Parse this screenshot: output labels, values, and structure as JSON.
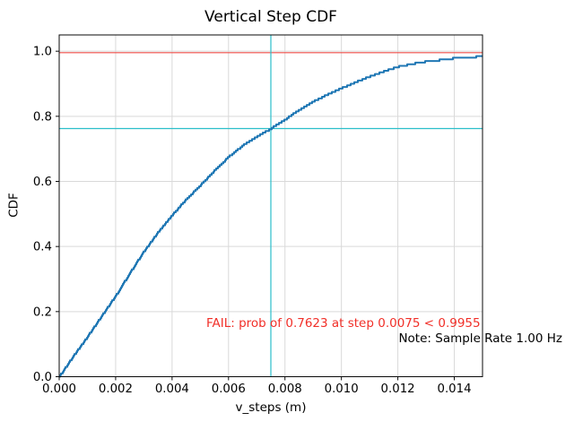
{
  "chart_data": {
    "type": "line",
    "title": "Vertical Step CDF",
    "xlabel": "v_steps (m)",
    "ylabel": "CDF",
    "xlim": [
      0,
      0.015
    ],
    "ylim": [
      0,
      1.05
    ],
    "grid": true,
    "legend": "none",
    "x_ticks": [
      {
        "value": 0.0,
        "label": "0.000"
      },
      {
        "value": 0.002,
        "label": "0.002"
      },
      {
        "value": 0.004,
        "label": "0.004"
      },
      {
        "value": 0.006,
        "label": "0.006"
      },
      {
        "value": 0.008,
        "label": "0.008"
      },
      {
        "value": 0.01,
        "label": "0.010"
      },
      {
        "value": 0.012,
        "label": "0.012"
      },
      {
        "value": 0.014,
        "label": "0.014"
      }
    ],
    "y_ticks": [
      {
        "value": 0.0,
        "label": "0.0"
      },
      {
        "value": 0.2,
        "label": "0.2"
      },
      {
        "value": 0.4,
        "label": "0.4"
      },
      {
        "value": 0.6,
        "label": "0.6"
      },
      {
        "value": 0.8,
        "label": "0.8"
      },
      {
        "value": 1.0,
        "label": "1.0"
      }
    ],
    "series": [
      {
        "name": "vertical-step-cdf",
        "style": "empirical-step",
        "color": "#1f77b4",
        "line_width": 2,
        "points": [
          [
            0.0,
            0.0
          ],
          [
            0.0005,
            0.063
          ],
          [
            0.001,
            0.123
          ],
          [
            0.0015,
            0.186
          ],
          [
            0.002,
            0.248
          ],
          [
            0.0025,
            0.318
          ],
          [
            0.003,
            0.385
          ],
          [
            0.0035,
            0.443
          ],
          [
            0.004,
            0.496
          ],
          [
            0.0045,
            0.545
          ],
          [
            0.005,
            0.588
          ],
          [
            0.0055,
            0.633
          ],
          [
            0.006,
            0.675
          ],
          [
            0.0065,
            0.71
          ],
          [
            0.007,
            0.737
          ],
          [
            0.0075,
            0.7623
          ],
          [
            0.008,
            0.79
          ],
          [
            0.0085,
            0.82
          ],
          [
            0.009,
            0.845
          ],
          [
            0.0095,
            0.867
          ],
          [
            0.01,
            0.886
          ],
          [
            0.0105,
            0.905
          ],
          [
            0.011,
            0.922
          ],
          [
            0.0115,
            0.938
          ],
          [
            0.012,
            0.952
          ],
          [
            0.0125,
            0.961
          ],
          [
            0.013,
            0.968
          ],
          [
            0.0135,
            0.973
          ],
          [
            0.014,
            0.978
          ],
          [
            0.0145,
            0.981
          ],
          [
            0.015,
            0.984
          ]
        ]
      }
    ],
    "reference_lines": {
      "required_prob_hline": {
        "value": 0.9955,
        "orientation": "horizontal",
        "color": "#ef4e48",
        "line_width": 1.2
      },
      "achieved_prob_hline": {
        "value": 0.7623,
        "orientation": "horizontal",
        "color": "#2bbfca",
        "line_width": 1.2
      },
      "step_vline": {
        "value": 0.0075,
        "orientation": "vertical",
        "color": "#2bbfca",
        "line_width": 1.2
      }
    },
    "annotations": {
      "fail": {
        "text": "FAIL: prob of 0.7623 at step 0.0075 < 0.9955",
        "color": "#f12f28"
      },
      "note": {
        "text": "Note: Sample Rate 1.00 Hz",
        "color": "#000000"
      }
    },
    "key_values": {
      "achieved_probability": 0.7623,
      "step_threshold": 0.0075,
      "required_probability": 0.9955,
      "sample_rate_hz": "1.00"
    },
    "colors": {
      "background": "#ffffff",
      "grid": "#d9d9d9",
      "spine": "#0a0a0a",
      "tick_label": "#000000"
    }
  }
}
